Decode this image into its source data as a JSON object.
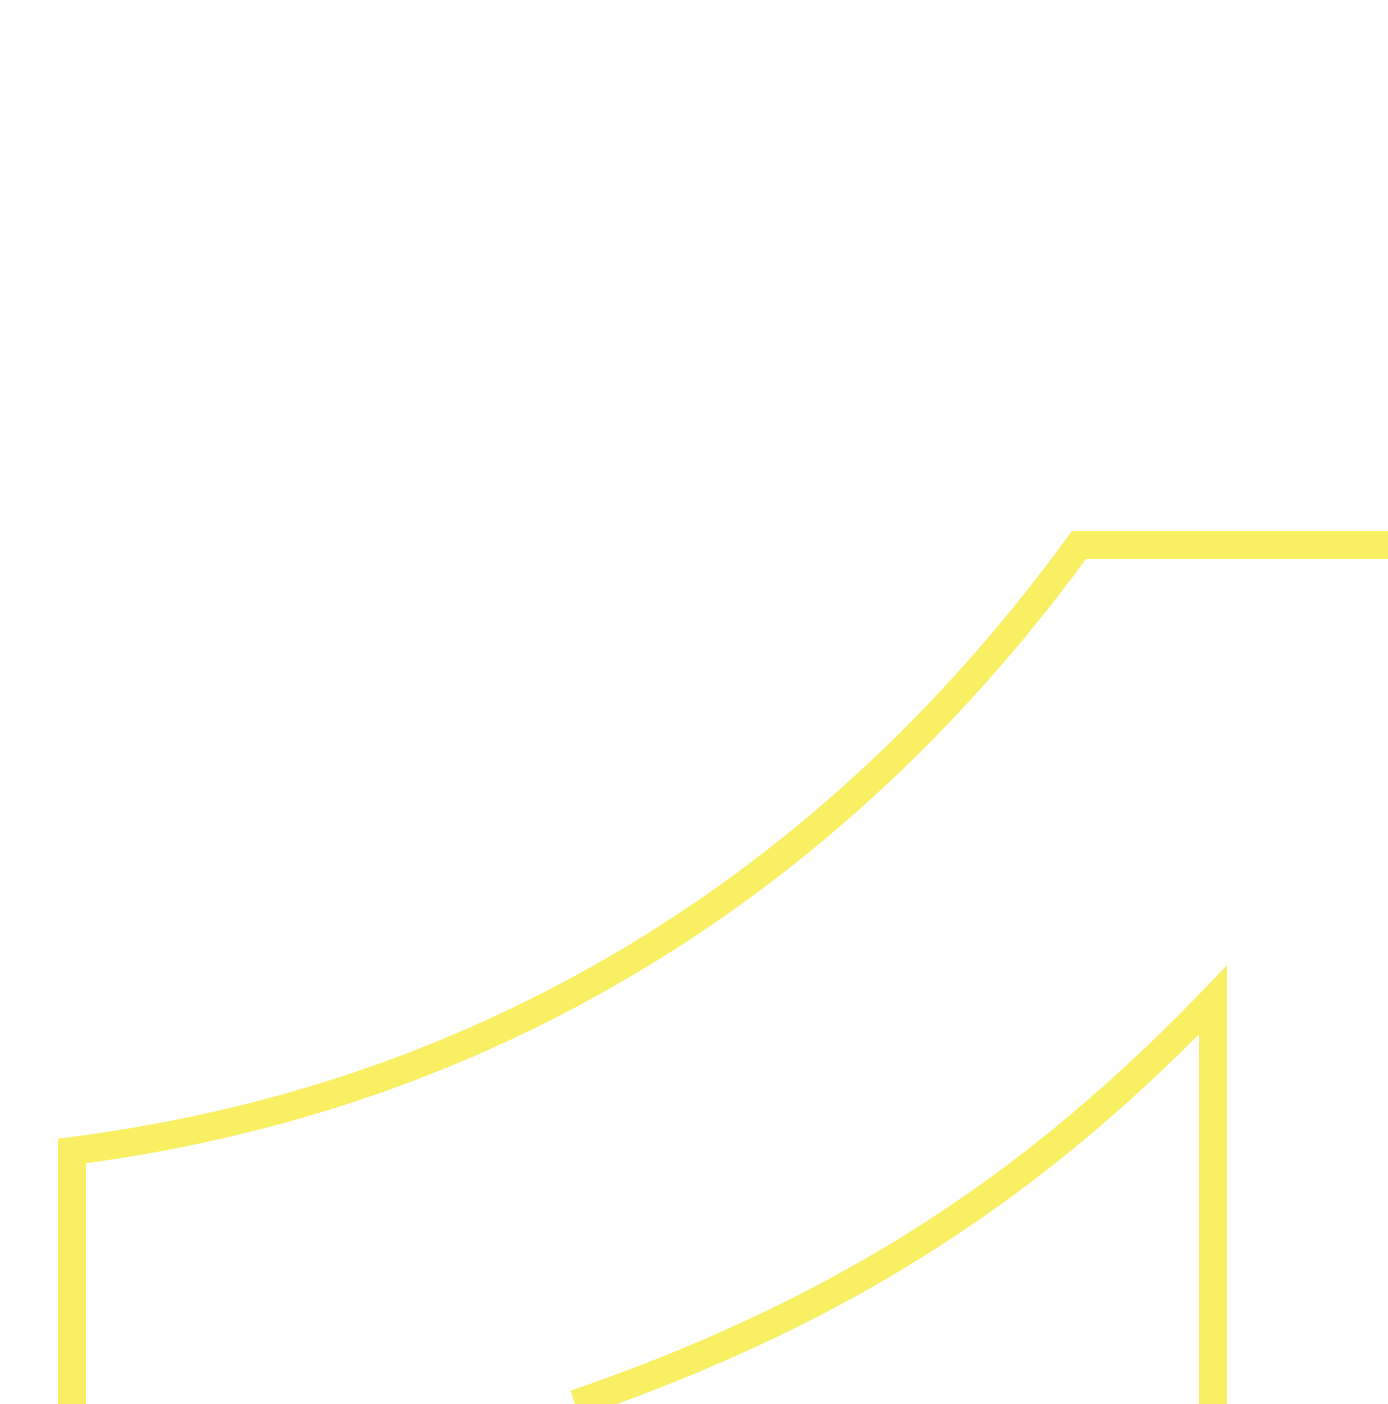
{
  "colors": {
    "background": "#ffffff",
    "stroke": "#f9ef63"
  },
  "shapes": {
    "outer_curve": "yellow-outer-curved-outline",
    "inner_curve": "yellow-inner-curved-outline"
  }
}
